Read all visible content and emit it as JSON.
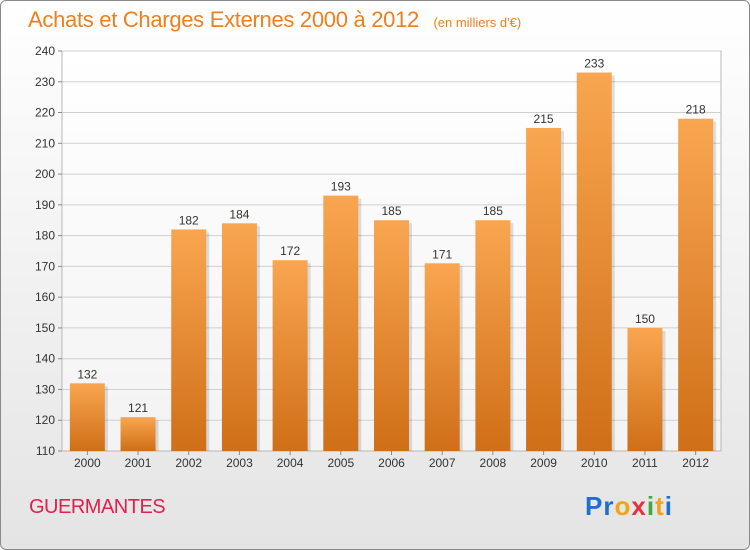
{
  "title": "Achats et Charges Externes 2000 à 2012",
  "unit": "(en milliers d'€)",
  "commune": "GUERMANTES",
  "logo": {
    "letters": [
      {
        "ch": "P",
        "color": "#1d6fd1"
      },
      {
        "ch": "r",
        "color": "#1d6fd1"
      },
      {
        "ch": "o",
        "color": "#f0a417"
      },
      {
        "ch": "x",
        "color": "#e6323e"
      },
      {
        "ch": "i",
        "color": "#3ea83e"
      },
      {
        "ch": "t",
        "color": "#f0a417"
      },
      {
        "ch": "i",
        "color": "#1d6fd1"
      }
    ]
  },
  "chart_data": {
    "type": "bar",
    "categories": [
      "2000",
      "2001",
      "2002",
      "2003",
      "2004",
      "2005",
      "2006",
      "2007",
      "2008",
      "2009",
      "2010",
      "2011",
      "2012"
    ],
    "values": [
      132,
      121,
      182,
      184,
      172,
      193,
      185,
      171,
      185,
      215,
      233,
      150,
      218
    ],
    "ylim": [
      110,
      240
    ],
    "yticks": [
      110,
      120,
      130,
      140,
      150,
      160,
      170,
      180,
      190,
      200,
      210,
      220,
      230,
      240
    ],
    "grid": true,
    "colors": {
      "bar_light": "#f9a650",
      "bar_dark": "#cf6f17",
      "grid": "#d0d0d0",
      "axis_text": "#333333"
    }
  }
}
